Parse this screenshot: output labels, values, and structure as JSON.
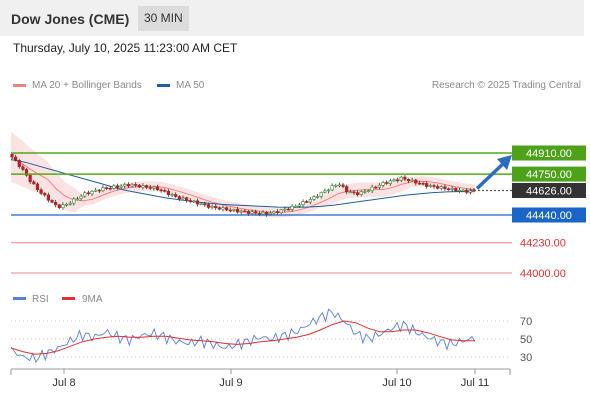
{
  "header": {
    "title": "Dow Jones (CME)",
    "timeframe": "30 MIN"
  },
  "datetime": "Thursday, July 10, 2025 11:23:00 AM CET",
  "legend": {
    "bb_label": "MA 20 + Bollinger Bands",
    "ma50_label": "MA 50",
    "credit": "Research © 2025 Trading Central"
  },
  "colors": {
    "bb": "#f08080",
    "ma50": "#1f5fa0",
    "resistance": "#55a81a",
    "support": "#1a66c8",
    "lower": "#f08080",
    "rsi": "#5b7fd6",
    "rsi_ma": "#e03030"
  },
  "chart_data": [
    {
      "type": "line",
      "title": "",
      "series_note": "30-minute candlesticks with MA 20, Bollinger Bands and MA 50",
      "y_visible_range": [
        43950,
        45020
      ],
      "x_ticks": [
        "Jul 8",
        "Jul 9",
        "Jul 10",
        "Jul 11"
      ],
      "levels": [
        {
          "label": "44910.00",
          "value": 44910,
          "kind": "resistance"
        },
        {
          "label": "44750.00",
          "value": 44750,
          "kind": "resistance"
        },
        {
          "label": "44626.00",
          "value": 44626,
          "kind": "last"
        },
        {
          "label": "44440.00",
          "value": 44440,
          "kind": "support"
        },
        {
          "label": "44230.00",
          "value": 44230,
          "kind": "lower"
        },
        {
          "label": "44000.00",
          "value": 44000,
          "kind": "lower"
        }
      ],
      "close_approx": [
        44880,
        44800,
        44700,
        44620,
        44560,
        44500,
        44520,
        44560,
        44600,
        44620,
        44640,
        44650,
        44660,
        44670,
        44660,
        44650,
        44640,
        44610,
        44580,
        44560,
        44540,
        44520,
        44500,
        44490,
        44480,
        44470,
        44460,
        44455,
        44450,
        44460,
        44480,
        44500,
        44530,
        44560,
        44600,
        44640,
        44680,
        44620,
        44600,
        44620,
        44650,
        44680,
        44700,
        44720,
        44700,
        44680,
        44660,
        44650,
        44640,
        44630,
        44620,
        44626
      ],
      "ma50_approx": [
        44860,
        44840,
        44810,
        44780,
        44750,
        44720,
        44690,
        44660,
        44630,
        44610,
        44590,
        44570,
        44555,
        44540,
        44530,
        44520,
        44515,
        44510,
        44505,
        44500,
        44498,
        44500,
        44505,
        44515,
        44530,
        44545,
        44560,
        44575,
        44590,
        44600,
        44610,
        44615,
        44618,
        44620
      ]
    },
    {
      "type": "line",
      "title": "",
      "legend": [
        "RSI",
        "9MA"
      ],
      "y_ticks": [
        70,
        50,
        30
      ],
      "ylim": [
        10,
        90
      ],
      "rsi": [
        38,
        30,
        28,
        34,
        40,
        48,
        55,
        52,
        58,
        52,
        49,
        54,
        56,
        52,
        47,
        45,
        48,
        44,
        40,
        44,
        48,
        52,
        50,
        54,
        58,
        66,
        74,
        80,
        70,
        56,
        50,
        55,
        62,
        66,
        58,
        52,
        47,
        44,
        48,
        51
      ],
      "rsi_ma": [
        40,
        36,
        33,
        34,
        37,
        42,
        47,
        50,
        52,
        53,
        52,
        52,
        53,
        53,
        51,
        49,
        48,
        47,
        45,
        44,
        45,
        47,
        48,
        50,
        52,
        55,
        60,
        66,
        70,
        68,
        62,
        58,
        58,
        60,
        60,
        57,
        53,
        49,
        48,
        48
      ]
    }
  ]
}
